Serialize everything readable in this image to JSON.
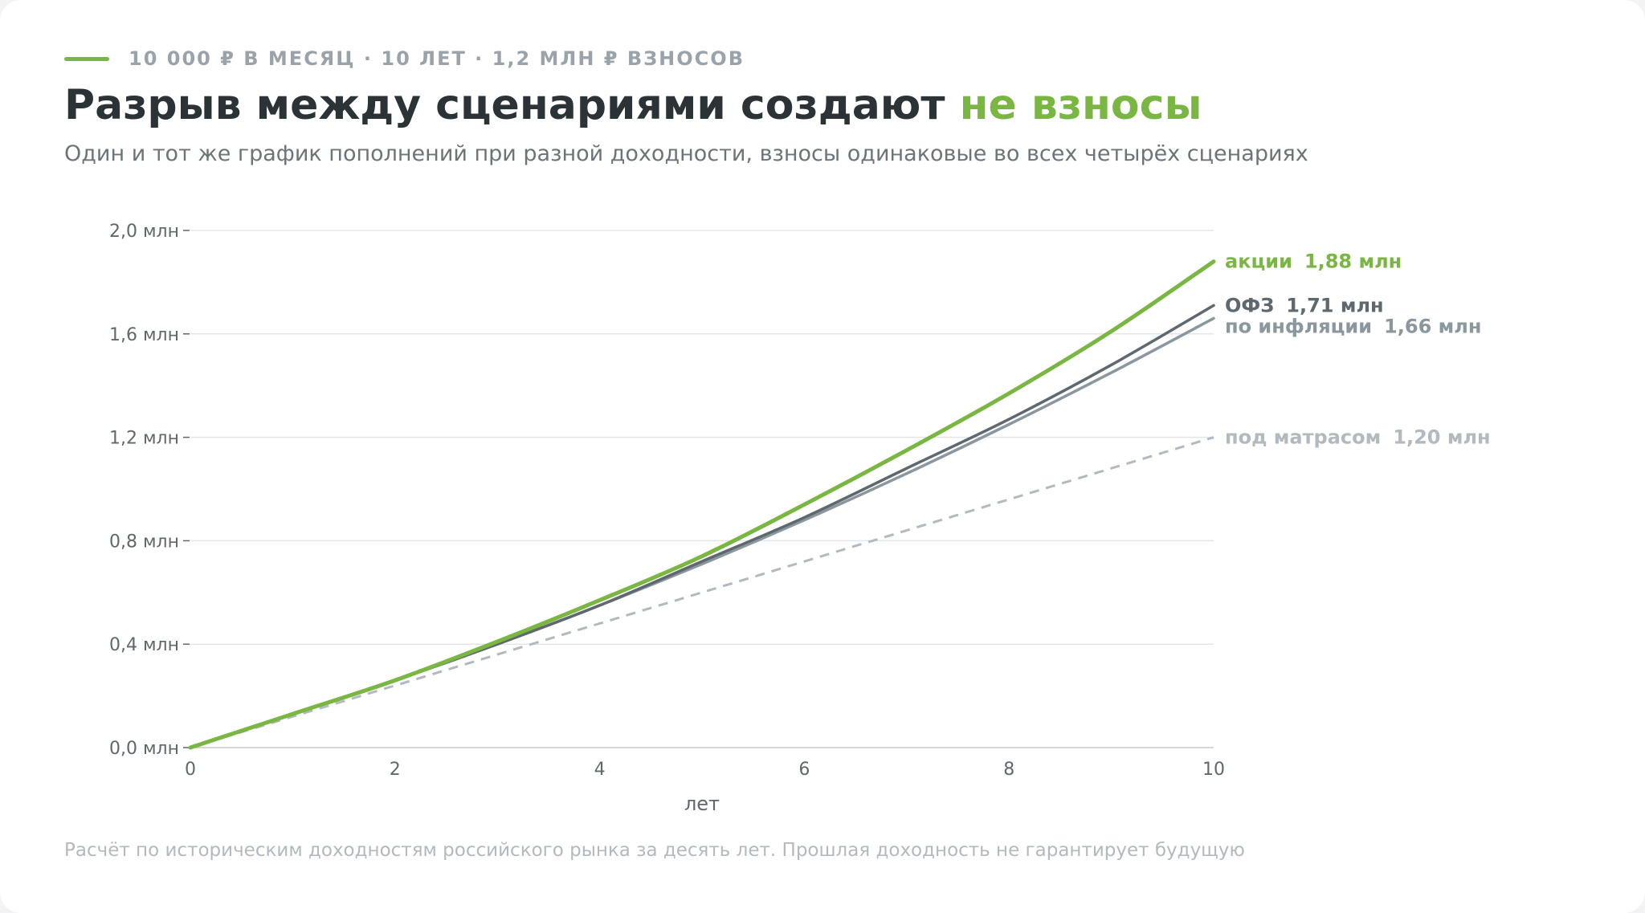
{
  "header": {
    "kicker": "10 000 ₽ В МЕСЯЦ · 10 ЛЕТ · 1,2 МЛН ₽ ВЗНОСОВ",
    "title_main": "Разрыв между сценариями создают ",
    "title_accent": "не взносы",
    "subtitle": "Один и тот же график пополнений при разной доходности, взносы одинаковые во всех четырёх сценариях"
  },
  "footnote": "Расчёт по историческим доходностям российского рынка за десять лет. Прошлая доходность не гарантирует будущую",
  "colors": {
    "accent": "#7ab642",
    "ofz": "#5f686e",
    "inflation": "#8b979f",
    "mattress": "#b2babf",
    "grid": "#e3e6e8"
  },
  "chart_data": {
    "type": "line",
    "title": "Разрыв между сценариями создают не взносы",
    "xlabel": "лет",
    "ylabel": "",
    "xlim": [
      0,
      10
    ],
    "ylim": [
      0,
      2.0
    ],
    "x_ticks": [
      0,
      2,
      4,
      6,
      8,
      10
    ],
    "x_tick_labels": [
      "0",
      "2",
      "4",
      "6",
      "8",
      "10"
    ],
    "y_ticks": [
      0,
      0.4,
      0.8,
      1.2,
      1.6,
      2.0
    ],
    "y_tick_labels": [
      "0,0 млн",
      "0,4 млн",
      "0,8 млн",
      "1,2 млн",
      "1,6 млн",
      "2,0 млн"
    ],
    "grid": "horizontal",
    "x": [
      0,
      1,
      2,
      3,
      4,
      5,
      6,
      7,
      8,
      9,
      10
    ],
    "series": [
      {
        "name": "акции",
        "end_label": "1,88 млн",
        "color": "#7ab642",
        "style": "solid-thick",
        "values": [
          0,
          0.13,
          0.26,
          0.41,
          0.57,
          0.74,
          0.94,
          1.15,
          1.37,
          1.61,
          1.88
        ]
      },
      {
        "name": "ОФЗ",
        "end_label": "1,71 млн",
        "color": "#5f686e",
        "style": "solid",
        "values": [
          0,
          0.13,
          0.26,
          0.4,
          0.55,
          0.72,
          0.89,
          1.08,
          1.27,
          1.48,
          1.71
        ]
      },
      {
        "name": "по инфляции",
        "end_label": "1,66 млн",
        "color": "#8b979f",
        "style": "solid",
        "values": [
          0,
          0.13,
          0.26,
          0.4,
          0.55,
          0.71,
          0.88,
          1.06,
          1.25,
          1.45,
          1.66
        ]
      },
      {
        "name": "под матрасом",
        "end_label": "1,20 млн",
        "color": "#b2babf",
        "style": "dashed",
        "values": [
          0,
          0.12,
          0.24,
          0.36,
          0.48,
          0.6,
          0.72,
          0.84,
          0.96,
          1.08,
          1.2
        ]
      }
    ]
  }
}
